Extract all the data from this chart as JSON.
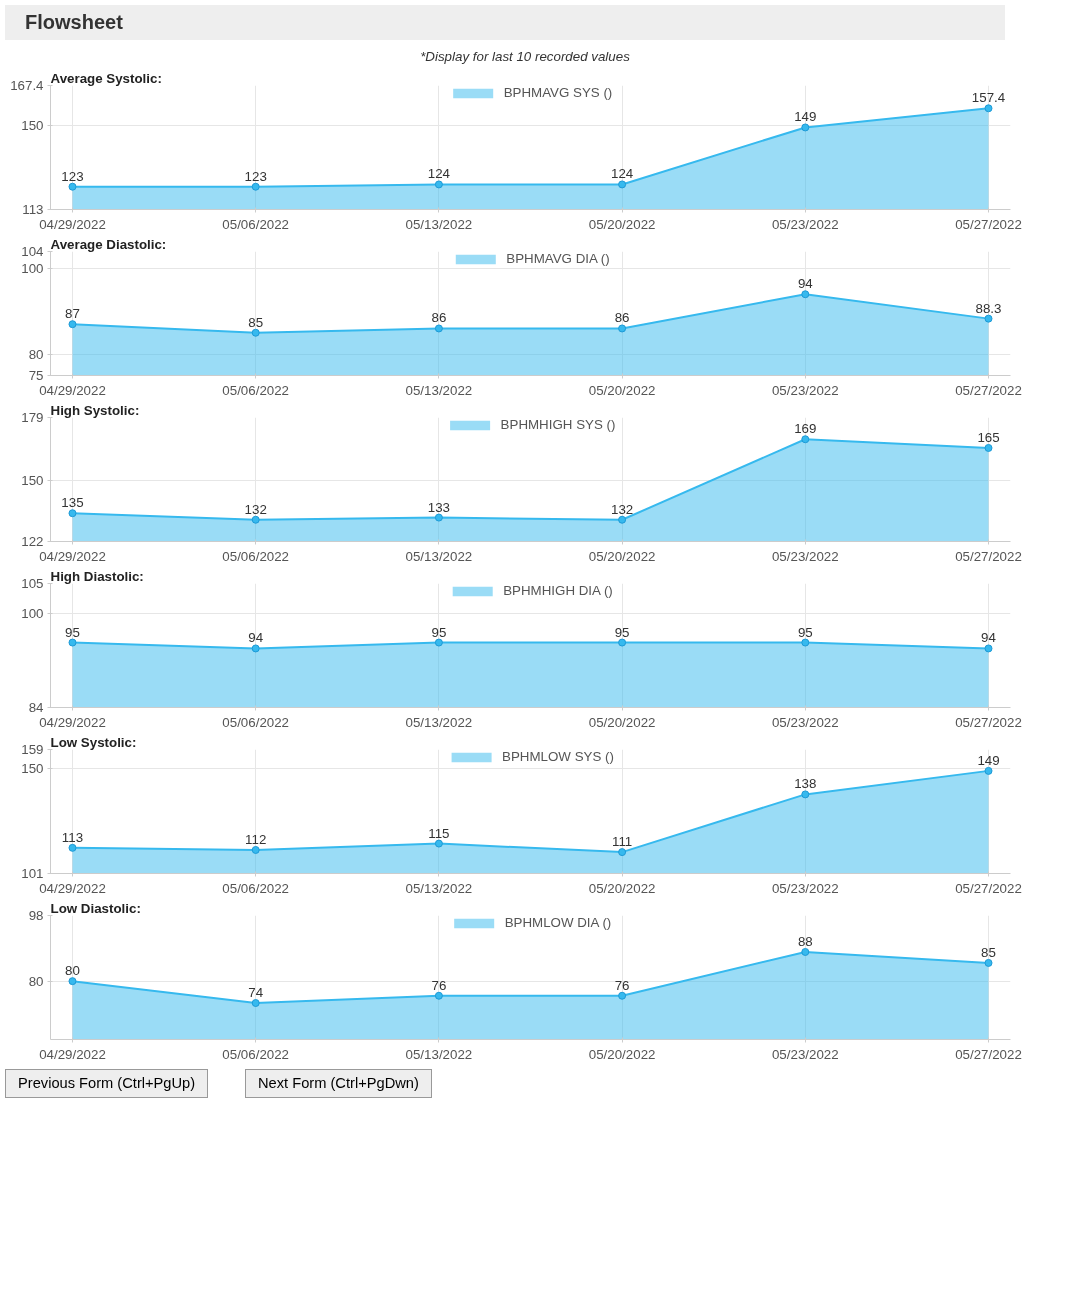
{
  "chart_data": [
    {
      "type": "area",
      "title": "Average Systolic:",
      "annotations": [
        "Flowsheet",
        "*Display for last 10 recorded values"
      ],
      "categories": [
        "04/29/2022",
        "05/06/2022",
        "05/13/2022",
        "05/20/2022",
        "05/23/2022",
        "05/27/2022"
      ],
      "series": [
        {
          "name": "BPHMAVG SYS ()",
          "color": "#36b9ee",
          "values": [
            123,
            123,
            124,
            124,
            149,
            157.4
          ]
        }
      ],
      "ylim": [
        113,
        167.4
      ],
      "yticks": [
        113,
        150,
        167.4
      ],
      "grid": true,
      "legend": "top",
      "marker": "circle",
      "data_labels": true
    },
    {
      "type": "area",
      "title": "Average Diastolic:",
      "categories": [
        "04/29/2022",
        "05/06/2022",
        "05/13/2022",
        "05/20/2022",
        "05/23/2022",
        "05/27/2022"
      ],
      "series": [
        {
          "name": "BPHMAVG DIA ()",
          "color": "#36b9ee",
          "values": [
            87,
            85,
            86,
            86,
            94,
            88.3
          ]
        }
      ],
      "ylim": [
        75,
        104
      ],
      "yticks": [
        75,
        80,
        100,
        104
      ],
      "grid": true,
      "legend": "top",
      "marker": "circle",
      "data_labels": true
    },
    {
      "type": "area",
      "title": "High Systolic:",
      "categories": [
        "04/29/2022",
        "05/06/2022",
        "05/13/2022",
        "05/20/2022",
        "05/23/2022",
        "05/27/2022"
      ],
      "series": [
        {
          "name": "BPHMHIGH SYS ()",
          "color": "#36b9ee",
          "values": [
            135,
            132,
            133,
            132,
            169,
            165
          ]
        }
      ],
      "ylim": [
        122,
        179
      ],
      "yticks": [
        122,
        150,
        179
      ],
      "grid": true,
      "legend": "top",
      "marker": "circle",
      "data_labels": true
    },
    {
      "type": "area",
      "title": "High Diastolic:",
      "categories": [
        "04/29/2022",
        "05/06/2022",
        "05/13/2022",
        "05/20/2022",
        "05/23/2022",
        "05/27/2022"
      ],
      "series": [
        {
          "name": "BPHMHIGH DIA ()",
          "color": "#36b9ee",
          "values": [
            95,
            94,
            95,
            95,
            95,
            94
          ]
        }
      ],
      "ylim": [
        84,
        105
      ],
      "yticks": [
        84,
        100,
        105
      ],
      "grid": true,
      "legend": "top",
      "marker": "circle",
      "data_labels": true
    },
    {
      "type": "area",
      "title": "Low Systolic:",
      "categories": [
        "04/29/2022",
        "05/06/2022",
        "05/13/2022",
        "05/20/2022",
        "05/23/2022",
        "05/27/2022"
      ],
      "series": [
        {
          "name": "BPHMLOW SYS ()",
          "color": "#36b9ee",
          "values": [
            113,
            112,
            115,
            111,
            138,
            149
          ]
        }
      ],
      "ylim": [
        101,
        159
      ],
      "yticks": [
        101,
        150,
        159
      ],
      "grid": true,
      "legend": "top",
      "marker": "circle",
      "data_labels": true
    },
    {
      "type": "area",
      "title": "Low Diastolic:",
      "annotations": [
        "Previous Form (Ctrl+PgUp)",
        "Next Form (Ctrl+PgDwn)"
      ],
      "categories": [
        "04/29/2022",
        "05/06/2022",
        "05/13/2022",
        "05/20/2022",
        "05/23/2022",
        "05/27/2022"
      ],
      "series": [
        {
          "name": "BPHMLOW DIA ()",
          "color": "#36b9ee",
          "values": [
            80,
            74,
            76,
            76,
            88,
            85
          ]
        }
      ],
      "ylim": [
        64,
        98
      ],
      "yticks": [
        80,
        98
      ],
      "grid": true,
      "legend": "top",
      "marker": "circle",
      "data_labels": true
    }
  ]
}
